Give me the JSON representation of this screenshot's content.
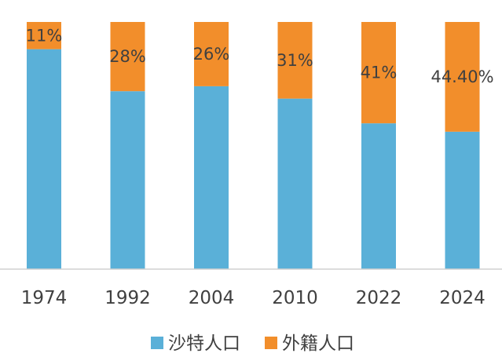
{
  "chart_data": {
    "type": "bar",
    "stacked": true,
    "normalized": true,
    "categories": [
      "1974",
      "1992",
      "2004",
      "2010",
      "2022",
      "2024"
    ],
    "series": [
      {
        "name": "沙特人口",
        "color": "#5AB0D8",
        "values": [
          89,
          72,
          74,
          69,
          59,
          55.6
        ]
      },
      {
        "name": "外籍人口",
        "color": "#F28E2B",
        "values": [
          11,
          28,
          26,
          31,
          41,
          44.4
        ],
        "labels": [
          "11%",
          "28%",
          "26%",
          "31%",
          "41%",
          "44.40%"
        ]
      }
    ],
    "ylim": [
      0,
      100
    ],
    "grid": false,
    "legend_position": "bottom"
  }
}
